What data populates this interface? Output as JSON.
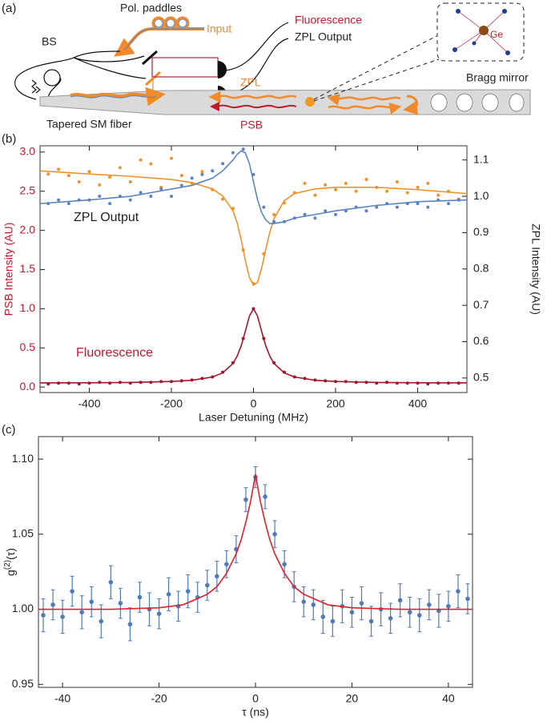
{
  "diagram": {
    "label": "(a)",
    "pol_paddles": "Pol. paddles",
    "input": "Input",
    "fluorescence": "Fluorescence",
    "zpl_output": "ZPL Output",
    "bs": "BS",
    "zpl": "ZPL",
    "psb": "PSB",
    "fiber": "Tapered SM fiber",
    "bragg": "Bragg mirror",
    "ge": "Ge"
  },
  "chart_data": [
    {
      "type": "scatter",
      "panel_label": "(b)",
      "xlabel": "Laser Detuning (MHz)",
      "ylabel": "PSB Intensity (AU)",
      "y2label": "ZPL Intensity (AU)",
      "y_axis_color": "#c0192c",
      "xlim": [
        -520,
        520
      ],
      "xticks": [
        -400,
        -200,
        0,
        200,
        400
      ],
      "ylim": [
        -0.07,
        3.08
      ],
      "yticks": [
        {
          "value": 0,
          "label": "0.0"
        },
        0.5,
        {
          "value": 1,
          "label": "1.0"
        },
        1.5,
        {
          "value": 2,
          "label": "2.0"
        },
        2.5,
        {
          "value": 3,
          "label": "3.0"
        }
      ],
      "y2lim": [
        0.46,
        1.139
      ],
      "y2ticks": [
        0.5,
        0.6,
        0.7,
        0.8,
        0.9,
        {
          "value": 1,
          "label": "1.0"
        },
        1.1
      ],
      "x": [
        -500,
        -475,
        -450,
        -425,
        -400,
        -375,
        -350,
        -325,
        -300,
        -275,
        -250,
        -225,
        -200,
        -175,
        -150,
        -125,
        -100,
        -75,
        -50,
        -25,
        0,
        25,
        50,
        75,
        100,
        125,
        150,
        175,
        200,
        225,
        250,
        275,
        300,
        325,
        350,
        375,
        400,
        425,
        450,
        475,
        500
      ],
      "series": [
        {
          "name": "Fluorescence",
          "color": "#a3162b",
          "label_color": "#c0192c",
          "style": "points",
          "values": [
            0.04,
            0.05,
            0.05,
            0.04,
            0.05,
            0.06,
            0.05,
            0.06,
            0.05,
            0.06,
            0.06,
            0.07,
            0.07,
            0.08,
            0.09,
            0.11,
            0.13,
            0.19,
            0.31,
            0.62,
            1.0,
            0.62,
            0.31,
            0.19,
            0.13,
            0.11,
            0.09,
            0.08,
            0.07,
            0.07,
            0.06,
            0.06,
            0.05,
            0.06,
            0.05,
            0.05,
            0.05,
            0.04,
            0.05,
            0.05,
            0.05
          ]
        },
        {
          "color": "#a3162b",
          "style": "line",
          "x": [
            -520,
            -400,
            -300,
            -200,
            -150,
            -100,
            -75,
            -50,
            -40,
            -30,
            -20,
            -10,
            0,
            10,
            20,
            30,
            40,
            50,
            75,
            100,
            150,
            200,
            300,
            400,
            520
          ],
          "values": [
            0.053,
            0.055,
            0.059,
            0.071,
            0.087,
            0.128,
            0.181,
            0.301,
            0.392,
            0.525,
            0.708,
            0.905,
            1.0,
            0.905,
            0.708,
            0.525,
            0.392,
            0.301,
            0.181,
            0.128,
            0.087,
            0.071,
            0.059,
            0.055,
            0.053
          ]
        },
        {
          "color": "#f0922b",
          "style": "points",
          "values": [
            2.72,
            2.78,
            2.7,
            2.62,
            2.75,
            2.58,
            2.68,
            2.8,
            2.62,
            2.9,
            2.85,
            2.55,
            2.92,
            2.7,
            2.6,
            2.75,
            2.52,
            2.4,
            2.28,
            1.75,
            1.32,
            1.7,
            2.2,
            2.35,
            2.48,
            2.6,
            2.45,
            2.58,
            2.52,
            2.6,
            2.5,
            2.65,
            2.55,
            2.5,
            2.62,
            2.48,
            2.55,
            2.6,
            2.45,
            2.5,
            2.4
          ]
        },
        {
          "color": "#f0922b",
          "style": "line",
          "x": [
            -520,
            -400,
            -300,
            -200,
            -150,
            -100,
            -75,
            -50,
            -40,
            -30,
            -20,
            -10,
            0,
            10,
            20,
            30,
            40,
            50,
            75,
            100,
            150,
            200,
            300,
            400,
            520
          ],
          "values": [
            2.76,
            2.72,
            2.69,
            2.65,
            2.61,
            2.53,
            2.44,
            2.25,
            2.1,
            1.88,
            1.62,
            1.4,
            1.3,
            1.34,
            1.52,
            1.76,
            1.98,
            2.15,
            2.38,
            2.47,
            2.53,
            2.55,
            2.55,
            2.52,
            2.47
          ]
        },
        {
          "name": "ZPL Output",
          "color": "#5b84bf",
          "label_color": "#222222",
          "style": "points",
          "axis": "y2",
          "values": [
            0.98,
            0.99,
            0.98,
            0.99,
            0.99,
            1.0,
            0.98,
            1.0,
            0.99,
            1.01,
            1.0,
            1.02,
            1.0,
            1.03,
            1.05,
            1.06,
            1.07,
            1.09,
            1.12,
            1.13,
            1.06,
            0.97,
            0.93,
            0.93,
            0.94,
            0.95,
            0.94,
            0.96,
            0.95,
            0.96,
            0.97,
            0.96,
            0.97,
            0.98,
            0.97,
            0.98,
            0.98,
            0.97,
            0.99,
            0.98,
            0.99
          ]
        },
        {
          "color": "#5b84bf",
          "style": "line",
          "axis": "y2",
          "x": [
            -520,
            -400,
            -300,
            -200,
            -150,
            -100,
            -75,
            -50,
            -40,
            -30,
            -20,
            -10,
            0,
            10,
            20,
            30,
            40,
            50,
            75,
            100,
            150,
            200,
            300,
            400,
            520
          ],
          "values": [
            0.98,
            0.99,
            1.0,
            1.02,
            1.03,
            1.05,
            1.07,
            1.1,
            1.115,
            1.125,
            1.12,
            1.09,
            1.04,
            0.99,
            0.955,
            0.935,
            0.925,
            0.925,
            0.93,
            0.94,
            0.95,
            0.96,
            0.975,
            0.985,
            0.99
          ]
        }
      ]
    },
    {
      "type": "scatter",
      "panel_label": "(c)",
      "xlabel": "τ (ns)",
      "ylabel": {
        "base": "g",
        "sup": "(2)",
        "rest": "(τ)"
      },
      "xlim": [
        -45,
        45
      ],
      "xticks": [
        -40,
        -20,
        0,
        20,
        40
      ],
      "ylim": [
        0.948,
        1.115
      ],
      "yticks": [
        0.95,
        {
          "value": 1,
          "label": "1.00"
        },
        1.05,
        {
          "value": 1.1,
          "label": "1.10"
        }
      ],
      "x": [
        -44,
        -42,
        -40,
        -38,
        -36,
        -34,
        -32,
        -30,
        -28,
        -26,
        -24,
        -22,
        -20,
        -18,
        -16,
        -14,
        -12,
        -10,
        -8,
        -6,
        -4,
        -2,
        0,
        2,
        4,
        6,
        8,
        10,
        12,
        14,
        16,
        18,
        20,
        22,
        24,
        26,
        28,
        30,
        32,
        34,
        36,
        38,
        40,
        42,
        44
      ],
      "series": [
        {
          "color": "#4f7bb8",
          "style": "points",
          "values": [
            0.996,
            1.003,
            0.995,
            1.012,
            0.998,
            1.005,
            0.992,
            1.018,
            1.004,
            0.99,
            1.008,
            1.0,
            0.997,
            1.01,
            1.002,
            1.012,
            1.008,
            1.016,
            1.022,
            1.03,
            1.04,
            1.073,
            1.088,
            1.075,
            1.05,
            1.03,
            1.015,
            1.005,
            1.003,
            0.995,
            0.992,
            1.002,
            0.998,
            1.004,
            0.992,
            1.0,
            0.994,
            1.006,
            0.998,
            0.996,
            1.003,
            0.999,
            1.002,
            1.012,
            1.007
          ],
          "errors": [
            0.011,
            0.01,
            0.011,
            0.01,
            0.011,
            0.01,
            0.011,
            0.011,
            0.01,
            0.011,
            0.01,
            0.011,
            0.01,
            0.011,
            0.01,
            0.011,
            0.01,
            0.01,
            0.01,
            0.009,
            0.009,
            0.008,
            0.007,
            0.008,
            0.009,
            0.009,
            0.01,
            0.01,
            0.01,
            0.011,
            0.01,
            0.011,
            0.01,
            0.011,
            0.01,
            0.011,
            0.01,
            0.011,
            0.01,
            0.011,
            0.01,
            0.011,
            0.01,
            0.011,
            0.01
          ]
        },
        {
          "color": "#e0202a",
          "style": "line",
          "x": [
            -45,
            -30,
            -20,
            -15,
            -10,
            -8,
            -6,
            -4,
            -3,
            -2,
            -1,
            0,
            1,
            2,
            3,
            4,
            6,
            8,
            10,
            15,
            20,
            30,
            45
          ],
          "values": [
            1.0,
            1.0,
            1.001,
            1.003,
            1.01,
            1.015,
            1.024,
            1.037,
            1.046,
            1.058,
            1.072,
            1.09,
            1.072,
            1.058,
            1.046,
            1.037,
            1.024,
            1.015,
            1.01,
            1.003,
            1.001,
            1.0,
            1.0
          ]
        }
      ]
    }
  ]
}
